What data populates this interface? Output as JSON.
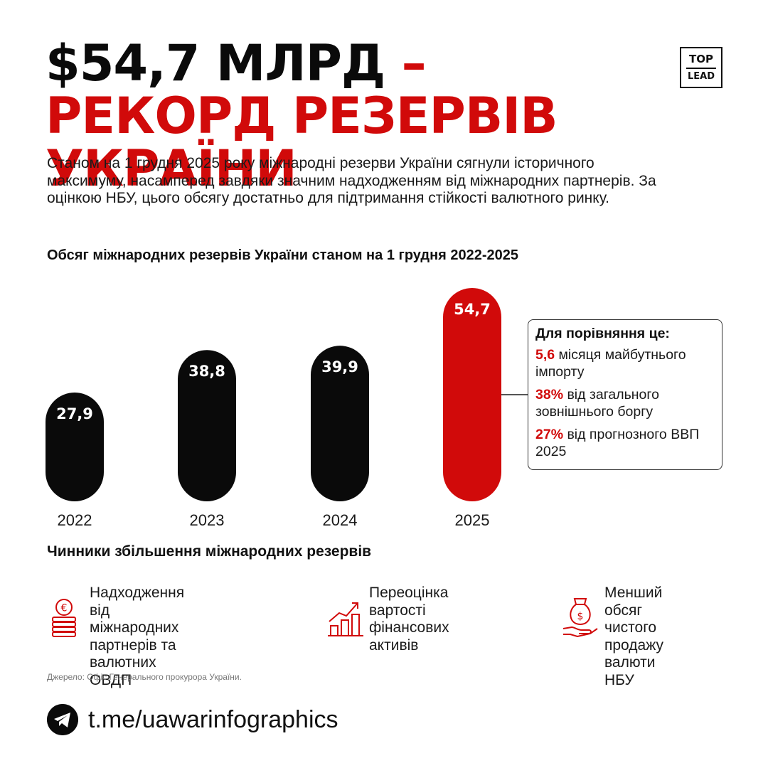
{
  "headline": {
    "part1": "$54,7 МЛРД",
    "part2": " – РЕКОРД РЕЗЕРВІВ УКРАЇНИ"
  },
  "logo": {
    "top": "TOP",
    "bottom": "LEAD"
  },
  "intro": "Станом на 1 грудня 2025 року міжнародні резерви України сягнули історичного максимуму, насамперед завдяки значним надходженням від міжнародних партнерів. За оцінкою НБУ, цього обсягу достатньо для підтримання стійкості валютного ринку.",
  "chart_data": {
    "type": "bar",
    "title": "Обсяг міжнародних резервів України станом на 1 грудня 2022-2025",
    "categories": [
      "2022",
      "2023",
      "2024",
      "2025"
    ],
    "values": [
      27.9,
      38.8,
      39.9,
      54.7
    ],
    "value_labels": [
      "27,9",
      "38,8",
      "39,9",
      "54,7"
    ],
    "highlight_index": 3,
    "xlabel": "",
    "ylabel": "",
    "grid": false,
    "colors": {
      "default": "#0a0a0a",
      "highlight": "#d10a0a"
    }
  },
  "comparison": {
    "title": "Для порівняння це:",
    "items": [
      {
        "num": "5,6",
        "text": " місяця майбутнього імпорту"
      },
      {
        "num": "38%",
        "text": " від загального зовнішнього боргу"
      },
      {
        "num": "27%",
        "text": " від прогнозного ВВП 2025"
      }
    ]
  },
  "factors": {
    "title": "Чинники збільшення міжнародних резервів",
    "items": [
      {
        "icon": "euro-coins-icon",
        "text": "Надходження\nвід міжнародних\nпартнерів та\nвалютних ОВДП"
      },
      {
        "icon": "growth-chart-icon",
        "text": "Переоцінка\nвартості\nфінансових\nактивів"
      },
      {
        "icon": "money-bag-hand-icon",
        "text": "Менший\nобсяг чистого\nпродажу\nвалюти НБУ"
      }
    ]
  },
  "source": "Джерело: Офіс Генерального прокурора України.",
  "telegram": {
    "icon": "telegram-icon",
    "url": "t.me/uawarinfographics"
  },
  "colors": {
    "accent": "#d10a0a",
    "ink": "#0a0a0a"
  }
}
